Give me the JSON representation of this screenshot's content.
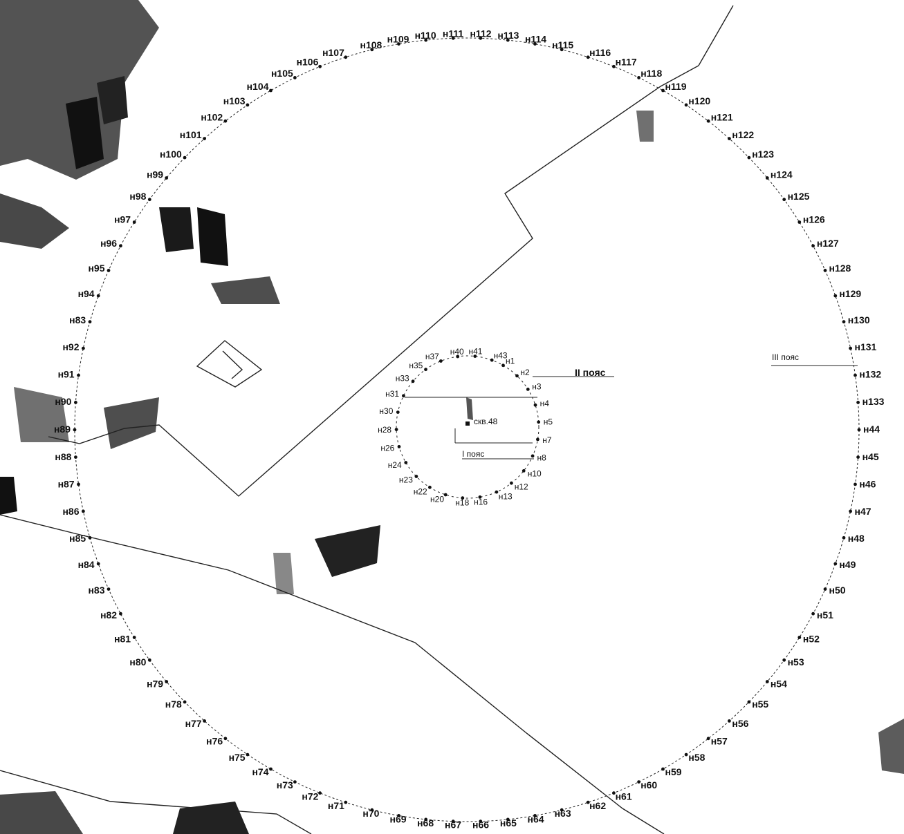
{
  "map": {
    "center_label": "скв.48",
    "zone_labels": {
      "zone1": "I пояс",
      "zone2": "II пояс",
      "zone3": "III пояс",
      "faded": ""
    },
    "colors": {
      "point": "#111111",
      "line": "#222222",
      "dark_patch": "#1a1a1a",
      "grey_patch": "#6e6e6e"
    },
    "outer_points": [
      "н44",
      "н45",
      "н46",
      "н47",
      "н48",
      "н49",
      "н50",
      "н51",
      "н52",
      "н53",
      "н54",
      "н55",
      "н56",
      "н57",
      "н58",
      "н59",
      "н60",
      "н61",
      "н62",
      "н63",
      "н64",
      "н65",
      "н66",
      "н67",
      "н68",
      "н69",
      "н70",
      "н71",
      "н72",
      "н73",
      "н74",
      "н75",
      "н76",
      "н77",
      "н78",
      "н79",
      "н80",
      "н81",
      "н82",
      "н83",
      "н84",
      "н85",
      "н86",
      "н87",
      "н88",
      "н89",
      "н90",
      "н91",
      "н92",
      "н83",
      "н94",
      "н95",
      "н96",
      "н97",
      "н98",
      "н99",
      "н100",
      "н101",
      "н102",
      "н103",
      "н104",
      "н105",
      "н106",
      "н107",
      "н108",
      "н109",
      "н110",
      "н111",
      "н112",
      "н113",
      "н114",
      "н115",
      "н116",
      "н117",
      "н118",
      "н119",
      "н120",
      "н121",
      "н122",
      "н123",
      "н124",
      "н125",
      "н126",
      "н127",
      "н128",
      "н129",
      "н130",
      "н131",
      "н132",
      "н133"
    ],
    "inner_points": [
      "н1",
      "н2",
      "н3",
      "н4",
      "н5",
      "н7",
      "н8",
      "н10",
      "н12",
      "н13",
      "н16",
      "н18",
      "н20",
      "н22",
      "н23",
      "н24",
      "н26",
      "н28",
      "н30",
      "н31",
      "н33",
      "н35",
      "н37",
      "н40",
      "н41",
      "н43"
    ]
  }
}
